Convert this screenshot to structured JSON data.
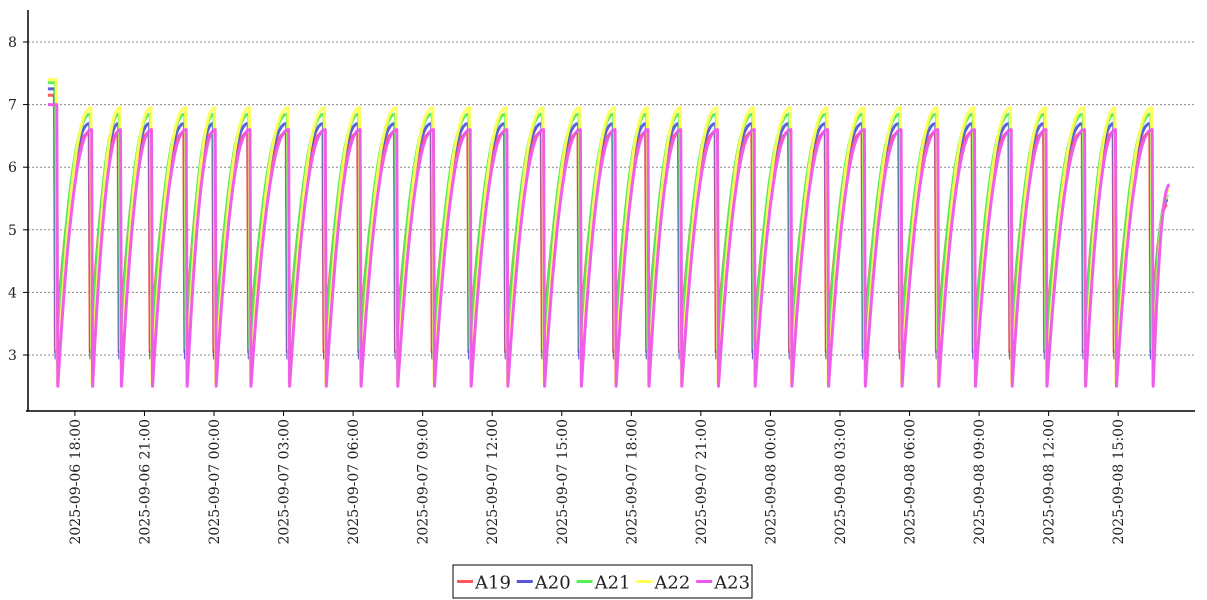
{
  "chart_data": {
    "type": "line",
    "title": "",
    "xlabel": "",
    "ylabel": "",
    "ylim": [
      2.3,
      8.5
    ],
    "yticks": [
      3,
      4,
      5,
      6,
      7,
      8
    ],
    "grid": "horizontal dotted",
    "legend_position": "bottom-center",
    "x_start": "2025-09-06 16:40",
    "x_end": "2025-09-08 17:40",
    "xticks": [
      "2025-09-06  18:00",
      "2025-09-06  21:00",
      "2025-09-07  00:00",
      "2025-09-07  03:00",
      "2025-09-07  06:00",
      "2025-09-07  09:00",
      "2025-09-07  12:00",
      "2025-09-07  15:00",
      "2025-09-07  18:00",
      "2025-09-07  21:00",
      "2025-09-08  00:00",
      "2025-09-08  03:00",
      "2025-09-08  06:00",
      "2025-09-08  09:00",
      "2025-09-08  12:00",
      "2025-09-08  15:00"
    ],
    "cycle_resets": [
      "2025-09-06 17:10",
      "2025-09-06 18:40",
      "2025-09-06 19:55",
      "2025-09-06 21:15",
      "2025-09-06 22:45",
      "2025-09-07 00:00",
      "2025-09-07 01:30",
      "2025-09-07 03:10",
      "2025-09-07 04:45",
      "2025-09-07 06:15",
      "2025-09-07 07:50",
      "2025-09-07 09:25",
      "2025-09-07 11:00",
      "2025-09-07 12:35",
      "2025-09-07 14:10",
      "2025-09-07 15:45",
      "2025-09-07 17:15",
      "2025-09-07 18:40",
      "2025-09-07 20:05",
      "2025-09-07 21:40",
      "2025-09-07 23:15",
      "2025-09-08 00:50",
      "2025-09-08 02:25",
      "2025-09-08 04:00",
      "2025-09-08 05:35",
      "2025-09-08 07:10",
      "2025-09-08 08:45",
      "2025-09-08 10:20",
      "2025-09-08 11:50",
      "2025-09-08 13:30",
      "2025-09-08 14:50",
      "2025-09-08 16:25"
    ],
    "series": [
      {
        "name": "A19",
        "color": "#ff5555",
        "peak": 6.55,
        "trough": 3.05
      },
      {
        "name": "A20",
        "color": "#5555dd",
        "peak": 6.7,
        "trough": 2.95
      },
      {
        "name": "A21",
        "color": "#55ee55",
        "peak": 6.85,
        "trough": 3.1
      },
      {
        "name": "A22",
        "color": "#ffff55",
        "peak": 6.95,
        "trough": 2.55
      },
      {
        "name": "A23",
        "color": "#ee55ee",
        "peak": 6.6,
        "trough": 2.5
      }
    ]
  }
}
